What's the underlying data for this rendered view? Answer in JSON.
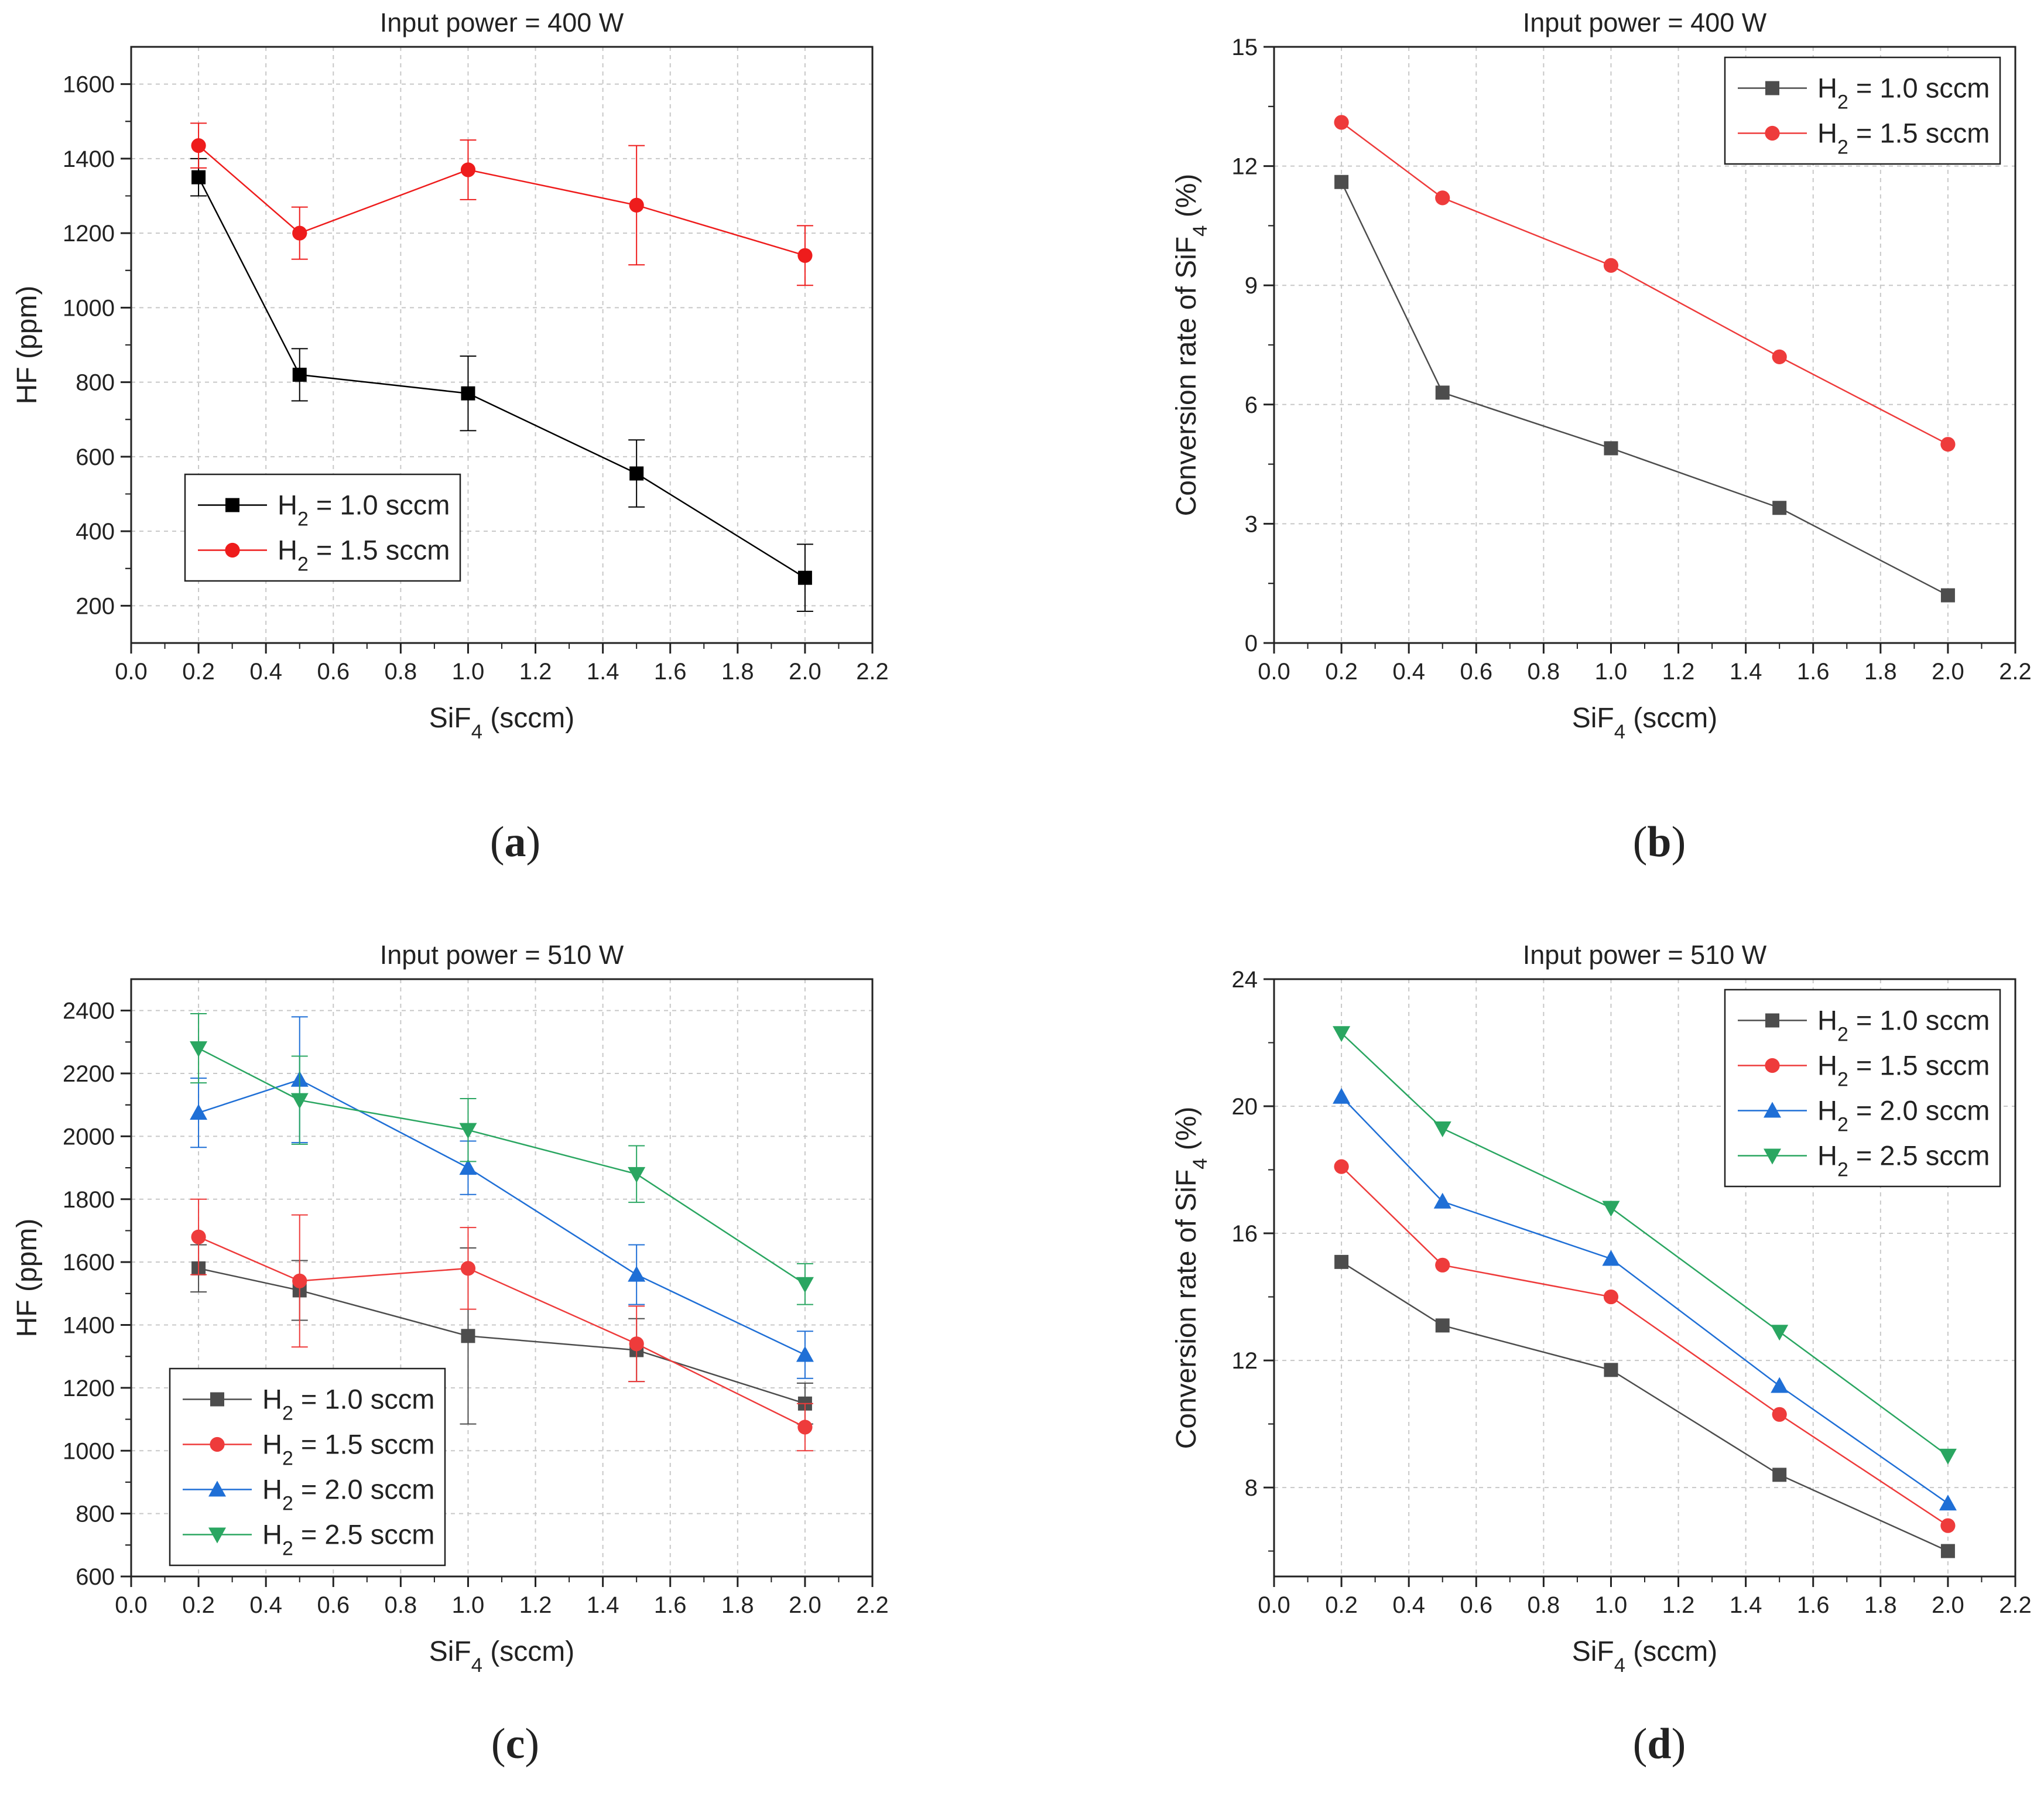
{
  "figure": {
    "captions": [
      "a",
      "b",
      "c",
      "d"
    ]
  },
  "chart_data": [
    {
      "id": "a",
      "type": "line",
      "title": "Input power = 400 W",
      "xlabel": "SiF4 (sccm)",
      "ylabel": "HF (ppm)",
      "xlim": [
        0.0,
        2.2
      ],
      "ylim": [
        100,
        1700
      ],
      "xticks": [
        0.0,
        0.2,
        0.4,
        0.6,
        0.8,
        1.0,
        1.2,
        1.4,
        1.6,
        1.8,
        2.0,
        2.2
      ],
      "yticks": [
        200,
        400,
        600,
        800,
        1000,
        1200,
        1400,
        1600
      ],
      "grid": true,
      "legend_position": "bottom-left",
      "x": [
        0.2,
        0.5,
        1.0,
        1.5,
        2.0
      ],
      "series": [
        {
          "name": "H2 = 1.0 sccm",
          "color": "#000000",
          "marker": "square",
          "values": [
            1350,
            820,
            770,
            555,
            275
          ],
          "errors": [
            50,
            70,
            100,
            90,
            90
          ]
        },
        {
          "name": "H2 = 1.5 sccm",
          "color": "#ee1c1c",
          "marker": "circle",
          "values": [
            1435,
            1200,
            1370,
            1275,
            1140
          ],
          "errors": [
            60,
            70,
            80,
            160,
            80
          ]
        }
      ]
    },
    {
      "id": "b",
      "type": "line",
      "title": "Input power = 400 W",
      "xlabel": "SiF4 (sccm)",
      "ylabel": "Conversion rate of SiF4 (%)",
      "xlim": [
        0.0,
        2.2
      ],
      "ylim": [
        0,
        15
      ],
      "xticks": [
        0.0,
        0.2,
        0.4,
        0.6,
        0.8,
        1.0,
        1.2,
        1.4,
        1.6,
        1.8,
        2.0,
        2.2
      ],
      "yticks": [
        0,
        3,
        6,
        9,
        12,
        15
      ],
      "grid": true,
      "legend_position": "top-right",
      "x": [
        0.2,
        0.5,
        1.0,
        1.5,
        2.0
      ],
      "series": [
        {
          "name": "H2 = 1.0 sccm",
          "color": "#4d4d4d",
          "marker": "square",
          "values": [
            11.6,
            6.3,
            4.9,
            3.4,
            1.2
          ]
        },
        {
          "name": "H2 = 1.5 sccm",
          "color": "#ee3b3b",
          "marker": "circle",
          "values": [
            13.1,
            11.2,
            9.5,
            7.2,
            5.0
          ]
        }
      ]
    },
    {
      "id": "c",
      "type": "line",
      "title": "Input power = 510 W",
      "xlabel": "SiF4 (sccm)",
      "ylabel": "HF (ppm)",
      "xlim": [
        0.0,
        2.2
      ],
      "ylim": [
        600,
        2500
      ],
      "xticks": [
        0.0,
        0.2,
        0.4,
        0.6,
        0.8,
        1.0,
        1.2,
        1.4,
        1.6,
        1.8,
        2.0,
        2.2
      ],
      "yticks": [
        600,
        800,
        1000,
        1200,
        1400,
        1600,
        1800,
        2000,
        2200,
        2400
      ],
      "grid": true,
      "legend_position": "bottom-left",
      "x": [
        0.2,
        0.5,
        1.0,
        1.5,
        2.0
      ],
      "series": [
        {
          "name": "H2 = 1.0 sccm",
          "color": "#4d4d4d",
          "marker": "square",
          "values": [
            1580,
            1510,
            1365,
            1320,
            1150
          ],
          "errors": [
            75,
            95,
            280,
            100,
            65
          ]
        },
        {
          "name": "H2 = 1.5 sccm",
          "color": "#ee3b3b",
          "marker": "circle",
          "values": [
            1680,
            1540,
            1580,
            1340,
            1075
          ],
          "errors": [
            120,
            210,
            130,
            120,
            75
          ]
        },
        {
          "name": "H2 = 2.0 sccm",
          "color": "#1f6fd6",
          "marker": "triangle-up",
          "values": [
            2075,
            2180,
            1900,
            1560,
            1305
          ],
          "errors": [
            110,
            200,
            85,
            95,
            75
          ]
        },
        {
          "name": "H2 = 2.5 sccm",
          "color": "#2aa661",
          "marker": "triangle-down",
          "values": [
            2280,
            2115,
            2020,
            1880,
            1530
          ],
          "errors": [
            110,
            140,
            100,
            90,
            65
          ]
        }
      ]
    },
    {
      "id": "d",
      "type": "line",
      "title": "Input power = 510 W",
      "xlabel": "SiF4 (sccm)",
      "ylabel": "Conversion rate of SiF4 (%)",
      "xlim": [
        0.0,
        2.2
      ],
      "ylim": [
        5.2,
        24
      ],
      "xticks": [
        0.0,
        0.2,
        0.4,
        0.6,
        0.8,
        1.0,
        1.2,
        1.4,
        1.6,
        1.8,
        2.0,
        2.2
      ],
      "yticks": [
        8,
        12,
        16,
        20,
        24
      ],
      "grid": true,
      "legend_position": "top-right",
      "x": [
        0.2,
        0.5,
        1.0,
        1.5,
        2.0
      ],
      "series": [
        {
          "name": "H2 = 1.0 sccm",
          "color": "#4d4d4d",
          "marker": "square",
          "values": [
            15.1,
            13.1,
            11.7,
            8.4,
            6.0
          ]
        },
        {
          "name": "H2 = 1.5 sccm",
          "color": "#ee3b3b",
          "marker": "circle",
          "values": [
            18.1,
            15.0,
            14.0,
            10.3,
            6.8
          ]
        },
        {
          "name": "H2 = 2.0 sccm",
          "color": "#1f6fd6",
          "marker": "triangle-up",
          "values": [
            20.3,
            17.0,
            15.2,
            11.2,
            7.5
          ]
        },
        {
          "name": "H2 = 2.5 sccm",
          "color": "#2aa661",
          "marker": "triangle-down",
          "values": [
            22.3,
            19.3,
            16.8,
            12.9,
            9.0
          ]
        }
      ]
    }
  ]
}
